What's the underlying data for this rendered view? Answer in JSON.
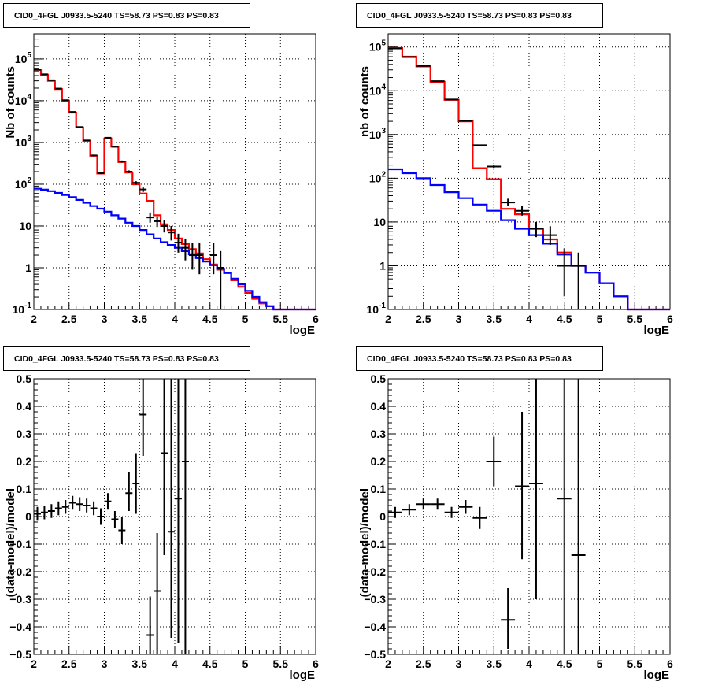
{
  "colors": {
    "data": "#000000",
    "total_model": "#ff0000",
    "background_model": "#0000ff",
    "frame": "#000000",
    "grid": "#000000"
  },
  "chart_data": [
    {
      "type": "line",
      "title": "CID0_4FGL J0933.5-5240 TS=58.73 PS=0.83 PS=0.83",
      "xlabel": "logE",
      "ylabel": "Nb of counts",
      "xlim": [
        2,
        6
      ],
      "ylim": [
        0.1,
        400000
      ],
      "yscale": "log",
      "grid": true,
      "xticks": [
        "2",
        "2.5",
        "3",
        "3.5",
        "4",
        "4.5",
        "5",
        "5.5",
        "6"
      ],
      "yticks": [
        {
          "v": 0.1,
          "base": "10",
          "exp": "-1"
        },
        {
          "v": 1,
          "label": "1"
        },
        {
          "v": 10,
          "label": "10"
        },
        {
          "v": 100,
          "base": "10",
          "exp": "2"
        },
        {
          "v": 1000,
          "base": "10",
          "exp": "3"
        },
        {
          "v": 10000,
          "base": "10",
          "exp": "4"
        },
        {
          "v": 100000,
          "base": "10",
          "exp": "5"
        }
      ],
      "bin_edges": [
        2.0,
        2.1,
        2.2,
        2.3,
        2.4,
        2.5,
        2.6,
        2.7,
        2.8,
        2.9,
        3.0,
        3.1,
        3.2,
        3.3,
        3.4,
        3.5,
        3.6,
        3.7,
        3.8,
        3.9,
        4.0,
        4.1,
        4.2,
        4.3,
        4.4,
        4.5,
        4.6,
        4.7,
        4.8,
        4.9,
        5.0,
        5.1,
        5.2,
        5.3,
        5.4,
        5.5,
        5.6,
        5.7,
        5.8,
        5.9,
        6.0
      ],
      "series": [
        {
          "style": "step",
          "color_key": "total_model",
          "values": [
            55000,
            42000,
            30000,
            19000,
            10000,
            5200,
            2300,
            1100,
            480,
            180,
            1250,
            800,
            340,
            190,
            100,
            60,
            40,
            18,
            11,
            8,
            5,
            3.7,
            2.8,
            2.2,
            1.6,
            1.2,
            0.9,
            0.75,
            0.5,
            0.35,
            0.25,
            0.18,
            0.14,
            0.12,
            0.1,
            0.1,
            0.1,
            0.1,
            0.1,
            0.1
          ]
        },
        {
          "style": "step",
          "color_key": "background_model",
          "values": [
            78,
            74,
            68,
            62,
            55,
            49,
            42,
            36,
            30,
            26,
            22,
            18,
            15,
            12,
            10,
            8,
            6.3,
            5,
            4.1,
            3.5,
            3.0,
            2.5,
            2.1,
            1.7,
            1.4,
            1.15,
            0.95,
            0.75,
            0.55,
            0.4,
            0.28,
            0.2,
            0.15,
            0.12,
            0.1,
            0.1,
            0.1,
            0.1,
            0.1,
            0.1
          ]
        },
        {
          "style": "errorbar",
          "color_key": "data",
          "xerr": 0.05,
          "points": [
            {
              "x": 2.05,
              "y": 55000,
              "lo": 54000,
              "hi": 56000
            },
            {
              "x": 2.15,
              "y": 43000,
              "lo": 42000,
              "hi": 44000
            },
            {
              "x": 2.25,
              "y": 31000,
              "lo": 30500,
              "hi": 31500
            },
            {
              "x": 2.35,
              "y": 19500,
              "lo": 19000,
              "hi": 20000
            },
            {
              "x": 2.45,
              "y": 10300,
              "lo": 10100,
              "hi": 10500
            },
            {
              "x": 2.55,
              "y": 5400,
              "lo": 5300,
              "hi": 5500
            },
            {
              "x": 2.65,
              "y": 2350,
              "lo": 2300,
              "hi": 2400
            },
            {
              "x": 2.75,
              "y": 1120,
              "lo": 1090,
              "hi": 1150
            },
            {
              "x": 2.85,
              "y": 490,
              "lo": 470,
              "hi": 510
            },
            {
              "x": 2.95,
              "y": 185,
              "lo": 175,
              "hi": 195
            },
            {
              "x": 3.05,
              "y": 1300,
              "lo": 1260,
              "hi": 1340
            },
            {
              "x": 3.15,
              "y": 790,
              "lo": 760,
              "hi": 820
            },
            {
              "x": 3.25,
              "y": 350,
              "lo": 330,
              "hi": 370
            },
            {
              "x": 3.35,
              "y": 200,
              "lo": 186,
              "hi": 214
            },
            {
              "x": 3.45,
              "y": 108,
              "lo": 98,
              "hi": 118
            },
            {
              "x": 3.55,
              "y": 75,
              "lo": 65,
              "hi": 85
            },
            {
              "x": 3.65,
              "y": 16,
              "lo": 12,
              "hi": 21
            },
            {
              "x": 3.75,
              "y": 13,
              "lo": 9.5,
              "hi": 17
            },
            {
              "x": 3.85,
              "y": 10,
              "lo": 7,
              "hi": 14
            },
            {
              "x": 3.95,
              "y": 7,
              "lo": 4.5,
              "hi": 10
            },
            {
              "x": 4.05,
              "y": 4,
              "lo": 2.3,
              "hi": 6.5
            },
            {
              "x": 4.15,
              "y": 3,
              "lo": 1.5,
              "hi": 5
            },
            {
              "x": 4.25,
              "y": 2,
              "lo": 0.9,
              "hi": 4
            },
            {
              "x": 4.35,
              "y": 2,
              "lo": 0.7,
              "hi": 4
            },
            {
              "x": 4.55,
              "y": 2,
              "lo": 0.7,
              "hi": 4
            },
            {
              "x": 4.65,
              "y": 1,
              "lo": 0.1,
              "hi": 2.5
            }
          ]
        }
      ]
    },
    {
      "type": "line",
      "title": "CID0_4FGL J0933.5-5240 TS=58.73 PS=0.83 PS=0.83",
      "xlabel": "logE",
      "ylabel": "nb of counts",
      "xlim": [
        2,
        6
      ],
      "ylim": [
        0.1,
        200000
      ],
      "yscale": "log",
      "grid": true,
      "xticks": [
        "2",
        "2.5",
        "3",
        "3.5",
        "4",
        "4.5",
        "5",
        "5.5",
        "6"
      ],
      "yticks": [
        {
          "v": 0.1,
          "base": "10",
          "exp": "-1"
        },
        {
          "v": 1,
          "label": "1"
        },
        {
          "v": 10,
          "label": "10"
        },
        {
          "v": 100,
          "base": "10",
          "exp": "2"
        },
        {
          "v": 1000,
          "base": "10",
          "exp": "3"
        },
        {
          "v": 10000,
          "base": "10",
          "exp": "4"
        },
        {
          "v": 100000,
          "base": "10",
          "exp": "5"
        }
      ],
      "bin_edges": [
        2.0,
        2.2,
        2.4,
        2.6,
        2.8,
        3.0,
        3.2,
        3.4,
        3.6,
        3.8,
        4.0,
        4.2,
        4.4,
        4.6,
        4.8,
        5.0,
        5.2,
        5.4,
        5.6,
        5.8,
        6.0
      ],
      "series": [
        {
          "style": "step",
          "color_key": "total_model",
          "values": [
            95000,
            60000,
            36000,
            16000,
            6200,
            2000,
            170,
            95,
            20,
            15,
            7,
            4,
            2,
            1,
            0.7,
            0.4,
            0.2,
            0.1,
            0.1,
            0.1
          ]
        },
        {
          "style": "step",
          "color_key": "background_model",
          "values": [
            160,
            130,
            100,
            70,
            48,
            35,
            25,
            18,
            11,
            7,
            5,
            3.2,
            1.8,
            1,
            0.7,
            0.4,
            0.2,
            0.1,
            0.1,
            0.1
          ]
        },
        {
          "style": "errorbar",
          "color_key": "data",
          "xerr": 0.1,
          "points": [
            {
              "x": 2.1,
              "y": 93000,
              "lo": 92000,
              "hi": 94000
            },
            {
              "x": 2.3,
              "y": 59000,
              "lo": 58500,
              "hi": 59500
            },
            {
              "x": 2.5,
              "y": 37000,
              "lo": 36500,
              "hi": 37500
            },
            {
              "x": 2.7,
              "y": 16500,
              "lo": 16300,
              "hi": 16700
            },
            {
              "x": 2.9,
              "y": 6300,
              "lo": 6200,
              "hi": 6400
            },
            {
              "x": 3.1,
              "y": 2050,
              "lo": 2000,
              "hi": 2100
            },
            {
              "x": 3.3,
              "y": 570,
              "lo": 550,
              "hi": 590
            },
            {
              "x": 3.5,
              "y": 185,
              "lo": 172,
              "hi": 198
            },
            {
              "x": 3.7,
              "y": 28,
              "lo": 23,
              "hi": 34
            },
            {
              "x": 3.9,
              "y": 18,
              "lo": 14,
              "hi": 23
            },
            {
              "x": 4.1,
              "y": 7,
              "lo": 4.5,
              "hi": 10
            },
            {
              "x": 4.3,
              "y": 5,
              "lo": 3,
              "hi": 8
            },
            {
              "x": 4.5,
              "y": 1,
              "lo": 0.2,
              "hi": 2.5
            },
            {
              "x": 4.7,
              "y": 1,
              "lo": 0.1,
              "hi": 2
            }
          ]
        }
      ]
    },
    {
      "type": "scatter",
      "title": "CID0_4FGL J0933.5-5240 TS=58.73 PS=0.83 PS=0.83",
      "xlabel": "logE",
      "ylabel": "(data-model)/model",
      "xlim": [
        2,
        6
      ],
      "ylim": [
        -0.5,
        0.5
      ],
      "yscale": "linear",
      "grid": true,
      "xticks": [
        "2",
        "2.5",
        "3",
        "3.5",
        "4",
        "4.5",
        "5",
        "5.5",
        "6"
      ],
      "yticks": [
        {
          "v": -0.5,
          "label": "−0.5"
        },
        {
          "v": -0.4,
          "label": "−0.4"
        },
        {
          "v": -0.3,
          "label": "−0.3"
        },
        {
          "v": -0.2,
          "label": "−0.2"
        },
        {
          "v": -0.1,
          "label": "−0.1"
        },
        {
          "v": 0,
          "label": "0"
        },
        {
          "v": 0.1,
          "label": "0.1"
        },
        {
          "v": 0.2,
          "label": "0.2"
        },
        {
          "v": 0.3,
          "label": "0.3"
        },
        {
          "v": 0.4,
          "label": "0.4"
        },
        {
          "v": 0.5,
          "label": "0.5"
        }
      ],
      "series": [
        {
          "style": "errorbar",
          "color_key": "data",
          "xerr": 0.05,
          "points": [
            {
              "x": 2.05,
              "y": 0.01,
              "lo": -0.015,
              "hi": 0.035
            },
            {
              "x": 2.15,
              "y": 0.015,
              "lo": -0.01,
              "hi": 0.04
            },
            {
              "x": 2.25,
              "y": 0.02,
              "lo": -0.005,
              "hi": 0.045
            },
            {
              "x": 2.35,
              "y": 0.03,
              "lo": 0.005,
              "hi": 0.055
            },
            {
              "x": 2.45,
              "y": 0.035,
              "lo": 0.01,
              "hi": 0.06
            },
            {
              "x": 2.55,
              "y": 0.05,
              "lo": 0.025,
              "hi": 0.075
            },
            {
              "x": 2.65,
              "y": 0.045,
              "lo": 0.02,
              "hi": 0.07
            },
            {
              "x": 2.75,
              "y": 0.04,
              "lo": 0.015,
              "hi": 0.065
            },
            {
              "x": 2.85,
              "y": 0.03,
              "lo": 0.005,
              "hi": 0.055
            },
            {
              "x": 2.95,
              "y": 0.0,
              "lo": -0.03,
              "hi": 0.03
            },
            {
              "x": 3.05,
              "y": 0.055,
              "lo": 0.025,
              "hi": 0.085
            },
            {
              "x": 3.15,
              "y": -0.01,
              "lo": -0.04,
              "hi": 0.02
            },
            {
              "x": 3.25,
              "y": -0.05,
              "lo": -0.1,
              "hi": 0.0
            },
            {
              "x": 3.35,
              "y": 0.085,
              "lo": 0.02,
              "hi": 0.16
            },
            {
              "x": 3.45,
              "y": 0.12,
              "lo": 0.01,
              "hi": 0.23
            },
            {
              "x": 3.55,
              "y": 0.37,
              "lo": 0.22,
              "hi": 0.5
            },
            {
              "x": 3.65,
              "y": -0.43,
              "lo": -0.5,
              "hi": -0.29
            },
            {
              "x": 3.75,
              "y": -0.27,
              "lo": -0.5,
              "hi": -0.06
            },
            {
              "x": 3.85,
              "y": 0.23,
              "lo": -0.14,
              "hi": 0.5
            },
            {
              "x": 3.95,
              "y": -0.055,
              "lo": -0.44,
              "hi": 0.5
            },
            {
              "x": 4.05,
              "y": 0.065,
              "lo": -0.46,
              "hi": 0.5
            },
            {
              "x": 4.15,
              "y": 0.2,
              "lo": -0.5,
              "hi": 0.5
            }
          ]
        }
      ]
    },
    {
      "type": "scatter",
      "title": "CID0_4FGL J0933.5-5240 TS=58.73 PS=0.83 PS=0.83",
      "xlabel": "logE",
      "ylabel": "(data-model)/model",
      "xlim": [
        2,
        6
      ],
      "ylim": [
        -0.5,
        0.5
      ],
      "yscale": "linear",
      "grid": true,
      "xticks": [
        "2",
        "2.5",
        "3",
        "3.5",
        "4",
        "4.5",
        "5",
        "5.5",
        "6"
      ],
      "yticks": [
        {
          "v": -0.5,
          "label": "−0.5"
        },
        {
          "v": -0.4,
          "label": "−0.4"
        },
        {
          "v": -0.3,
          "label": "−0.3"
        },
        {
          "v": -0.2,
          "label": "−0.2"
        },
        {
          "v": -0.1,
          "label": "−0.1"
        },
        {
          "v": 0,
          "label": "0"
        },
        {
          "v": 0.1,
          "label": "0.1"
        },
        {
          "v": 0.2,
          "label": "0.2"
        },
        {
          "v": 0.3,
          "label": "0.3"
        },
        {
          "v": 0.4,
          "label": "0.4"
        },
        {
          "v": 0.5,
          "label": "0.5"
        }
      ],
      "series": [
        {
          "style": "errorbar",
          "color_key": "data",
          "xerr": 0.1,
          "points": [
            {
              "x": 2.1,
              "y": 0.015,
              "lo": -0.005,
              "hi": 0.035
            },
            {
              "x": 2.3,
              "y": 0.025,
              "lo": 0.005,
              "hi": 0.045
            },
            {
              "x": 2.5,
              "y": 0.045,
              "lo": 0.025,
              "hi": 0.065
            },
            {
              "x": 2.7,
              "y": 0.045,
              "lo": 0.025,
              "hi": 0.065
            },
            {
              "x": 2.9,
              "y": 0.015,
              "lo": -0.005,
              "hi": 0.035
            },
            {
              "x": 3.1,
              "y": 0.035,
              "lo": 0.01,
              "hi": 0.06
            },
            {
              "x": 3.3,
              "y": -0.005,
              "lo": -0.045,
              "hi": 0.035
            },
            {
              "x": 3.5,
              "y": 0.2,
              "lo": 0.11,
              "hi": 0.29
            },
            {
              "x": 3.7,
              "y": -0.375,
              "lo": -0.48,
              "hi": -0.26
            },
            {
              "x": 3.9,
              "y": 0.11,
              "lo": -0.155,
              "hi": 0.38
            },
            {
              "x": 4.1,
              "y": 0.12,
              "lo": -0.3,
              "hi": 0.5
            },
            {
              "x": 4.5,
              "y": 0.065,
              "lo": -0.5,
              "hi": 0.5
            },
            {
              "x": 4.7,
              "y": -0.14,
              "lo": -0.5,
              "hi": 0.5
            }
          ]
        }
      ]
    }
  ]
}
